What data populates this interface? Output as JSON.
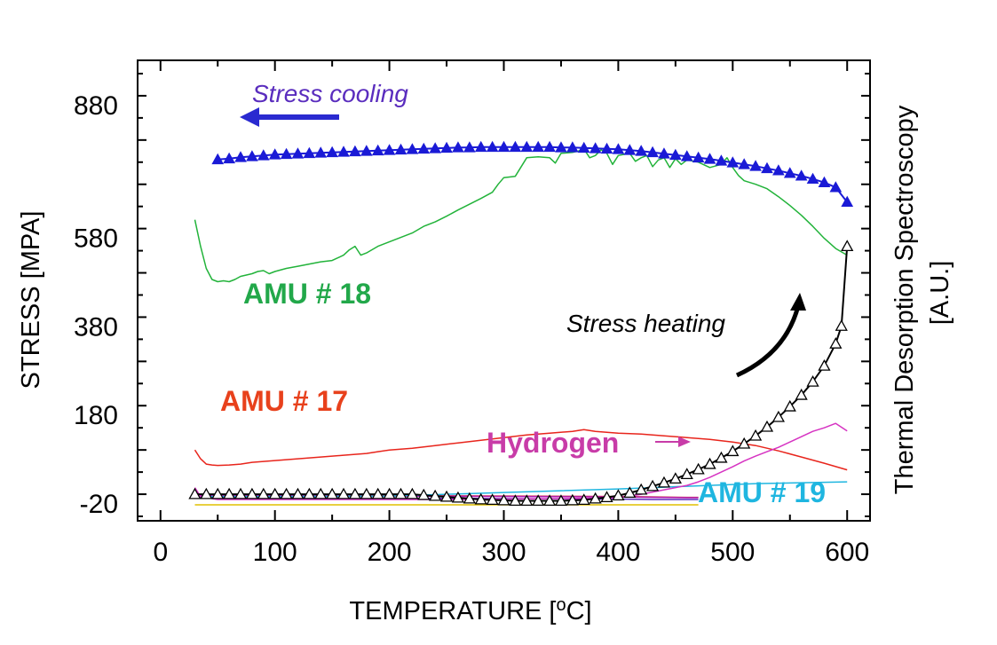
{
  "chart_data": {
    "type": "line",
    "title": "",
    "xlabel": "TEMPERATURE [",
    "xlabel_sup": "o",
    "xlabel_suffix": "C]",
    "ylabel": "STRESS [MPA]",
    "y2label_line1": "Thermal Desorption Spectroscopy",
    "y2label_line2": "[A.U.]",
    "xlim": [
      -20,
      620
    ],
    "ylim": [
      -60,
      980
    ],
    "xticks": [
      0,
      100,
      200,
      300,
      400,
      500,
      600
    ],
    "xtick_labels": [
      "0",
      "100",
      "200",
      "300",
      "400",
      "500",
      "600"
    ],
    "yticks": [
      -20,
      180,
      380,
      580,
      880
    ],
    "ytick_labels": [
      "-20",
      "180",
      "380",
      "580",
      "880"
    ],
    "annotations": {
      "stress_cooling": "Stress cooling",
      "stress_heating": "Stress heating",
      "amu18": "AMU # 18",
      "amu17": "AMU # 17",
      "hydrogen": "Hydrogen",
      "amu19": "AMU # 19"
    },
    "colors": {
      "amu18": "#22b33a",
      "amu17": "#e8251c",
      "hydrogen": "#d633c2",
      "amu19": "#1fb6e0",
      "stress_cooling": "#1a1ad6",
      "stress_heating": "#000000",
      "stress_cooling_label": "#5a2dbe",
      "amu17_label": "#e8411c",
      "hydrogen_label": "#c83ca8",
      "yellow": "#e0c000"
    },
    "series": [
      {
        "name": "Stress cooling",
        "marker": "filled-triangle",
        "x": [
          50,
          60,
          70,
          80,
          90,
          100,
          110,
          120,
          130,
          140,
          150,
          160,
          170,
          180,
          190,
          200,
          210,
          220,
          230,
          240,
          250,
          260,
          270,
          280,
          290,
          300,
          310,
          320,
          330,
          340,
          350,
          360,
          370,
          380,
          390,
          400,
          410,
          420,
          430,
          440,
          450,
          460,
          470,
          480,
          490,
          500,
          510,
          520,
          530,
          540,
          550,
          560,
          570,
          580,
          590,
          600
        ],
        "y": [
          756,
          758,
          761,
          763,
          765,
          767,
          768,
          769,
          770,
          771,
          772,
          773,
          774,
          775,
          776,
          777,
          778,
          779,
          780,
          781,
          782,
          783,
          783,
          784,
          784,
          784,
          784,
          784,
          784,
          784,
          783,
          783,
          782,
          781,
          780,
          779,
          777,
          775,
          772,
          769,
          766,
          763,
          760,
          757,
          753,
          749,
          745,
          741,
          736,
          731,
          725,
          719,
          712,
          704,
          693,
          660
        ]
      },
      {
        "name": "Stress heating",
        "marker": "open-triangle",
        "x": [
          30,
          40,
          50,
          60,
          70,
          80,
          90,
          100,
          110,
          120,
          130,
          140,
          150,
          160,
          170,
          180,
          190,
          200,
          210,
          220,
          230,
          240,
          250,
          260,
          270,
          280,
          290,
          300,
          310,
          320,
          330,
          340,
          350,
          360,
          370,
          380,
          390,
          400,
          410,
          420,
          430,
          440,
          450,
          460,
          470,
          480,
          490,
          500,
          510,
          520,
          530,
          540,
          550,
          560,
          570,
          580,
          590,
          595,
          600
        ],
        "y": [
          0,
          0,
          0,
          0,
          0,
          0,
          0,
          0,
          0,
          0,
          0,
          0,
          0,
          0,
          0,
          0,
          0,
          0,
          0,
          0,
          -2,
          -4,
          -6,
          -8,
          -10,
          -12,
          -13,
          -14,
          -15,
          -15,
          -15,
          -15,
          -15,
          -14,
          -13,
          -10,
          -7,
          -3,
          3,
          10,
          18,
          26,
          35,
          45,
          56,
          68,
          82,
          97,
          114,
          132,
          152,
          174,
          198,
          224,
          254,
          290,
          340,
          380,
          560
        ]
      },
      {
        "name": "AMU # 18",
        "x": [
          30,
          35,
          40,
          45,
          50,
          55,
          60,
          65,
          70,
          75,
          80,
          85,
          90,
          95,
          100,
          110,
          120,
          130,
          140,
          150,
          160,
          165,
          170,
          175,
          180,
          190,
          200,
          210,
          220,
          230,
          240,
          250,
          260,
          270,
          280,
          290,
          295,
          300,
          310,
          320,
          330,
          340,
          345,
          350,
          360,
          365,
          370,
          375,
          380,
          385,
          390,
          395,
          400,
          410,
          415,
          420,
          425,
          430,
          435,
          440,
          445,
          450,
          455,
          460,
          470,
          480,
          490,
          495,
          500,
          505,
          510,
          520,
          530,
          540,
          550,
          560,
          570,
          580,
          590,
          600
        ],
        "y": [
          620,
          560,
          510,
          485,
          480,
          482,
          480,
          485,
          492,
          495,
          498,
          503,
          505,
          498,
          503,
          510,
          515,
          520,
          525,
          528,
          540,
          552,
          560,
          540,
          545,
          560,
          570,
          580,
          590,
          605,
          615,
          628,
          642,
          655,
          668,
          682,
          700,
          715,
          718,
          760,
          762,
          760,
          748,
          770,
          772,
          775,
          780,
          760,
          765,
          778,
          770,
          745,
          765,
          770,
          752,
          760,
          765,
          740,
          755,
          760,
          738,
          758,
          745,
          755,
          750,
          738,
          745,
          760,
          738,
          720,
          708,
          700,
          690,
          672,
          652,
          630,
          605,
          578,
          555,
          540
        ]
      },
      {
        "name": "AMU # 17",
        "x": [
          30,
          35,
          40,
          45,
          50,
          60,
          70,
          80,
          90,
          100,
          120,
          140,
          160,
          180,
          190,
          200,
          220,
          240,
          260,
          280,
          300,
          320,
          340,
          360,
          370,
          375,
          380,
          390,
          400,
          420,
          440,
          460,
          480,
          500,
          520,
          540,
          560,
          580,
          600
        ],
        "y": [
          100,
          80,
          68,
          66,
          65,
          66,
          68,
          72,
          74,
          76,
          80,
          84,
          88,
          92,
          96,
          100,
          104,
          110,
          116,
          122,
          128,
          134,
          138,
          142,
          146,
          144,
          142,
          140,
          138,
          136,
          132,
          128,
          124,
          118,
          110,
          98,
          84,
          70,
          55
        ]
      },
      {
        "name": "Hydrogen",
        "x": [
          30,
          35,
          40,
          45,
          50,
          100,
          150,
          200,
          250,
          300,
          350,
          400,
          410,
          420,
          430,
          440,
          450,
          460,
          470,
          480,
          490,
          500,
          510,
          520,
          530,
          540,
          550,
          560,
          570,
          580,
          590,
          600
        ],
        "y": [
          15,
          -5,
          -8,
          -10,
          -12,
          -12,
          -12,
          -12,
          -12,
          -11,
          -10,
          -8,
          -4,
          0,
          5,
          10,
          15,
          20,
          28,
          38,
          50,
          62,
          75,
          86,
          96,
          106,
          118,
          130,
          142,
          150,
          160,
          143
        ]
      },
      {
        "name": "AMU # 19",
        "x": [
          30,
          100,
          200,
          250,
          300,
          350,
          400,
          420,
          440,
          460,
          480,
          500,
          520,
          540,
          560,
          580,
          600
        ],
        "y": [
          -5,
          -5,
          -4,
          0,
          4,
          8,
          12,
          14,
          16,
          18,
          20,
          22,
          24,
          25,
          26,
          27,
          28
        ]
      },
      {
        "name": "low-magenta",
        "x": [
          30,
          100,
          200,
          300,
          400,
          430,
          460,
          470
        ],
        "y": [
          -3,
          -3,
          -4,
          -5,
          -6,
          -7,
          -8,
          -8
        ]
      },
      {
        "name": "low-red",
        "x": [
          30,
          100,
          200,
          300,
          400,
          430,
          460,
          470
        ],
        "y": [
          -2,
          -2,
          -3,
          -4,
          -5,
          -6,
          -7,
          -7
        ]
      },
      {
        "name": "low-purple",
        "x": [
          30,
          100,
          200,
          300,
          400,
          430,
          460,
          470
        ],
        "y": [
          -8,
          -8,
          -9,
          -10,
          -11,
          -12,
          -12,
          -12
        ]
      },
      {
        "name": "low-yellow",
        "x": [
          30,
          100,
          200,
          300,
          400,
          470
        ],
        "y": [
          -24,
          -24,
          -24,
          -24,
          -24,
          -24
        ]
      }
    ]
  }
}
